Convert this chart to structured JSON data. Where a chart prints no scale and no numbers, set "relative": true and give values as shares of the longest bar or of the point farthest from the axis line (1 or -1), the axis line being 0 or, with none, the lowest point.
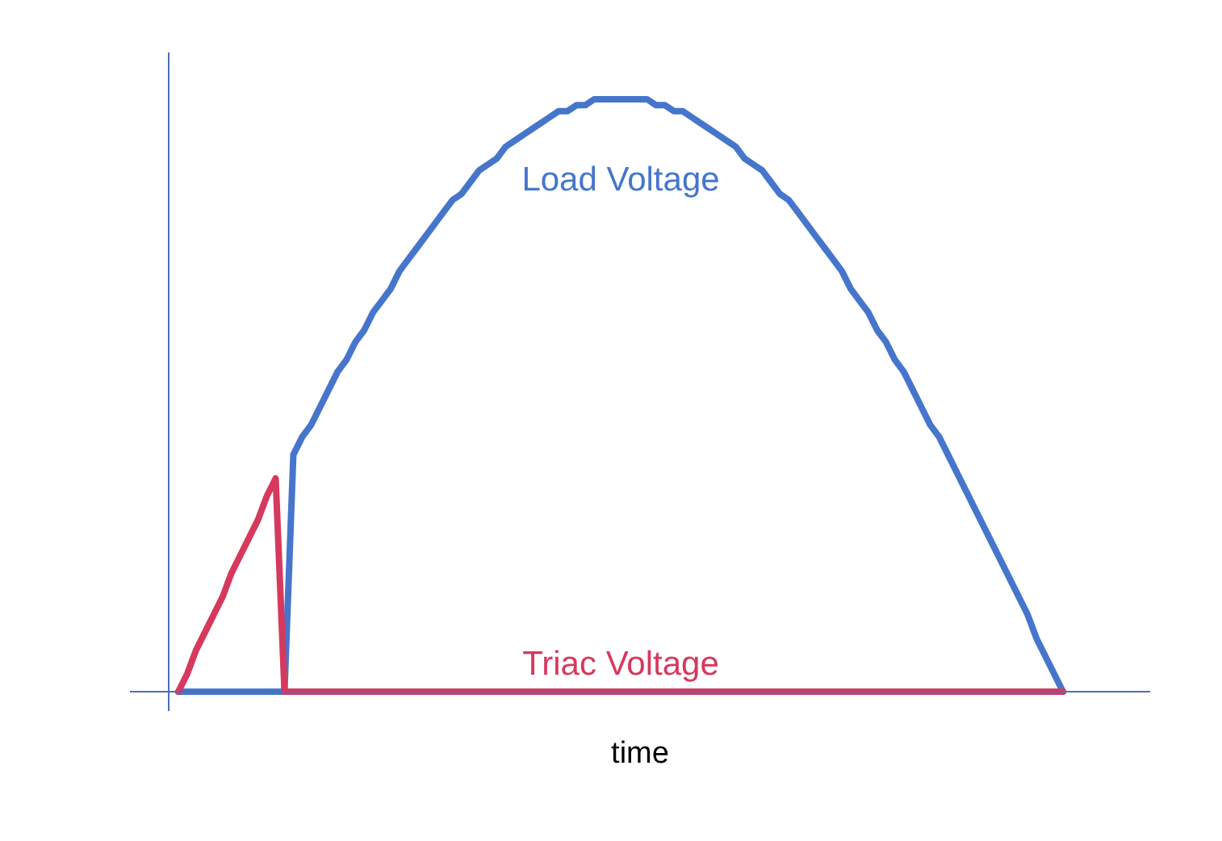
{
  "chart_data": {
    "type": "line",
    "xlabel": "time",
    "relative": true,
    "categories": [
      null,
      null,
      null,
      null,
      null,
      null,
      null,
      null,
      null,
      null,
      null,
      null,
      null,
      null,
      null,
      null,
      null,
      null,
      null,
      null,
      null,
      null,
      null,
      null,
      null,
      null,
      null,
      null,
      null,
      null,
      null,
      null,
      null,
      null,
      null,
      null,
      null,
      null,
      null,
      null,
      null,
      null,
      null,
      null,
      null,
      null,
      null,
      null,
      null,
      null,
      null,
      null,
      null,
      null,
      null,
      null,
      null,
      null,
      null,
      null,
      null,
      null,
      null,
      null,
      null,
      null,
      null,
      null,
      null,
      null,
      null,
      null,
      null,
      null,
      null,
      null,
      null,
      null,
      null,
      null,
      null,
      null,
      null,
      null,
      null,
      null,
      null,
      null,
      null,
      null,
      null,
      null,
      null,
      null,
      null,
      null,
      null,
      null,
      null,
      null,
      null
    ],
    "series": [
      {
        "name": "Load Voltage",
        "color": "#4676cc",
        "values": [
          0,
          0,
          0,
          0,
          0,
          0,
          0,
          0,
          0,
          0,
          0,
          0,
          0,
          0.4,
          0.43,
          0.45,
          0.48,
          0.51,
          0.54,
          0.56,
          0.59,
          0.61,
          0.64,
          0.66,
          0.68,
          0.71,
          0.73,
          0.75,
          0.77,
          0.79,
          0.81,
          0.83,
          0.84,
          0.86,
          0.88,
          0.89,
          0.9,
          0.92,
          0.93,
          0.94,
          0.95,
          0.96,
          0.97,
          0.98,
          0.98,
          0.99,
          0.99,
          1.0,
          1.0,
          1.0,
          1.0,
          1.0,
          1.0,
          1.0,
          0.99,
          0.99,
          0.98,
          0.98,
          0.97,
          0.96,
          0.95,
          0.94,
          0.93,
          0.92,
          0.9,
          0.89,
          0.88,
          0.86,
          0.84,
          0.83,
          0.81,
          0.79,
          0.77,
          0.75,
          0.73,
          0.71,
          0.68,
          0.66,
          0.64,
          0.61,
          0.59,
          0.56,
          0.54,
          0.51,
          0.48,
          0.45,
          0.43,
          0.4,
          0.37,
          0.34,
          0.31,
          0.28,
          0.25,
          0.22,
          0.19,
          0.16,
          0.13,
          0.09,
          0.06,
          0.03,
          0
        ]
      },
      {
        "name": "Triac Voltage",
        "color": "#d6395d",
        "values": [
          0,
          0.03,
          0.07,
          0.1,
          0.13,
          0.16,
          0.2,
          0.23,
          0.26,
          0.29,
          0.33,
          0.36,
          0,
          0,
          0,
          0,
          0,
          0,
          0,
          0,
          0,
          0,
          0,
          0,
          0,
          0,
          0,
          0,
          0,
          0,
          0,
          0,
          0,
          0,
          0,
          0,
          0,
          0,
          0,
          0,
          0,
          0,
          0,
          0,
          0,
          0,
          0,
          0,
          0,
          0,
          0,
          0,
          0,
          0,
          0,
          0,
          0,
          0,
          0,
          0,
          0,
          0,
          0,
          0,
          0,
          0,
          0,
          0,
          0,
          0,
          0,
          0,
          0,
          0,
          0,
          0,
          0,
          0,
          0,
          0,
          0,
          0,
          0,
          0,
          0,
          0,
          0,
          0,
          0,
          0,
          0,
          0,
          0,
          0,
          0,
          0,
          0,
          0,
          0,
          0,
          0
        ]
      }
    ]
  }
}
